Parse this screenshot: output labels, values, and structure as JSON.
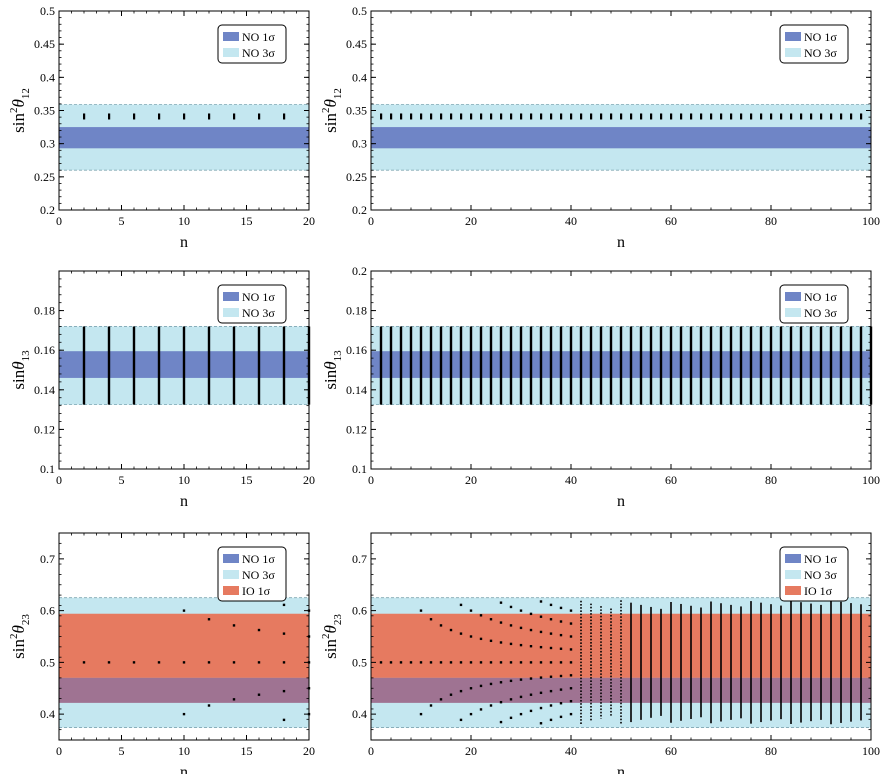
{
  "colors": {
    "no_1sigma": "#6f85c6",
    "no_3sigma": "#c4e7f0",
    "io_1sigma": "#e67a60",
    "overlap": "#9f7392",
    "points": "#000000"
  },
  "chart_data": [
    {
      "type": "scatter",
      "xlabel": "n",
      "ylabel_main": "sin",
      "ylabel_sup": "2",
      "ylabel_theta": "θ",
      "ylabel_sub": "12",
      "xlim": [
        0,
        20
      ],
      "ylim": [
        0.2,
        0.5
      ],
      "xticks": [
        0,
        5,
        10,
        15,
        20
      ],
      "yticks": [
        0.2,
        0.25,
        0.3,
        0.35,
        0.4,
        0.45,
        0.5
      ],
      "ytick_labels": [
        "0.2",
        "0.25",
        "0.3",
        "0.35",
        "0.4",
        "0.45",
        "0.5"
      ],
      "bands": [
        {
          "name": "NO 3σ",
          "range": [
            0.26,
            0.359
          ],
          "color": "no_3sigma"
        },
        {
          "name": "NO 1σ",
          "range": [
            0.293,
            0.325
          ],
          "color": "no_1sigma"
        }
      ],
      "legend": [
        {
          "label": "NO 1σ",
          "color": "no_1sigma"
        },
        {
          "label": "NO 3σ",
          "color": "no_3sigma"
        }
      ],
      "legend_position": "top-right",
      "series_mode": "marks",
      "x": [
        2,
        4,
        6,
        8,
        10,
        12,
        14,
        16,
        18
      ],
      "y": [
        0.341,
        0.341,
        0.341,
        0.341,
        0.341,
        0.341,
        0.341,
        0.341,
        0.341
      ]
    },
    {
      "type": "scatter",
      "xlabel": "n",
      "ylabel_main": "sin",
      "ylabel_sup": "2",
      "ylabel_theta": "θ",
      "ylabel_sub": "12",
      "xlim": [
        0,
        100
      ],
      "ylim": [
        0.2,
        0.5
      ],
      "xticks": [
        0,
        20,
        40,
        60,
        80,
        100
      ],
      "yticks": [
        0.2,
        0.25,
        0.3,
        0.35,
        0.4,
        0.45,
        0.5
      ],
      "ytick_labels": [
        "0.2",
        "0.25",
        "0.3",
        "0.35",
        "0.4",
        "0.45",
        "0.5"
      ],
      "bands": [
        {
          "name": "NO 3σ",
          "range": [
            0.26,
            0.359
          ],
          "color": "no_3sigma"
        },
        {
          "name": "NO 1σ",
          "range": [
            0.293,
            0.325
          ],
          "color": "no_1sigma"
        }
      ],
      "legend": [
        {
          "label": "NO 1σ",
          "color": "no_1sigma"
        },
        {
          "label": "NO 3σ",
          "color": "no_3sigma"
        }
      ],
      "legend_position": "top-right",
      "series_mode": "marks",
      "x_range_even": [
        2,
        98
      ],
      "y_value": 0.341
    },
    {
      "type": "scatter",
      "xlabel": "n",
      "ylabel_main": "sin",
      "ylabel_sup": "",
      "ylabel_theta": "θ",
      "ylabel_sub": "13",
      "xlim": [
        0,
        20
      ],
      "ylim": [
        0.1,
        0.2
      ],
      "xticks": [
        0,
        5,
        10,
        15,
        20
      ],
      "yticks": [
        0.1,
        0.12,
        0.14,
        0.16,
        0.18
      ],
      "ytick_labels": [
        "0.1",
        "0.12",
        "0.14",
        "0.16",
        "0.18"
      ],
      "bands": [
        {
          "name": "NO 3σ",
          "range": [
            0.1325,
            0.172
          ],
          "color": "no_3sigma"
        },
        {
          "name": "NO 1σ",
          "range": [
            0.146,
            0.1595
          ],
          "color": "no_1sigma"
        }
      ],
      "legend": [
        {
          "label": "NO 1σ",
          "color": "no_1sigma"
        },
        {
          "label": "NO 3σ",
          "color": "no_3sigma"
        }
      ],
      "legend_position": "top-right",
      "series_mode": "vertical-segments",
      "x_range_even": [
        2,
        20
      ],
      "y_segment": [
        0.1325,
        0.172
      ]
    },
    {
      "type": "scatter",
      "xlabel": "n",
      "ylabel_main": "sin",
      "ylabel_sup": "",
      "ylabel_theta": "θ",
      "ylabel_sub": "13",
      "xlim": [
        0,
        100
      ],
      "ylim": [
        0.1,
        0.2
      ],
      "xticks": [
        0,
        20,
        40,
        60,
        80,
        100
      ],
      "yticks": [
        0.1,
        0.12,
        0.14,
        0.16,
        0.18,
        0.2
      ],
      "ytick_labels": [
        "0.1",
        "0.12",
        "0.14",
        "0.16",
        "0.18",
        "0.2"
      ],
      "bands": [
        {
          "name": "NO 3σ",
          "range": [
            0.1325,
            0.172
          ],
          "color": "no_3sigma"
        },
        {
          "name": "NO 1σ",
          "range": [
            0.146,
            0.1595
          ],
          "color": "no_1sigma"
        }
      ],
      "legend": [
        {
          "label": "NO 1σ",
          "color": "no_1sigma"
        },
        {
          "label": "NO 3σ",
          "color": "no_3sigma"
        }
      ],
      "legend_position": "top-right",
      "series_mode": "vertical-segments",
      "x_range_even": [
        2,
        100
      ],
      "y_segment": [
        0.1325,
        0.172
      ]
    },
    {
      "type": "scatter",
      "xlabel": "n",
      "ylabel_main": "sin",
      "ylabel_sup": "2",
      "ylabel_theta": "θ",
      "ylabel_sub": "23",
      "xlim": [
        0,
        20
      ],
      "ylim": [
        0.35,
        0.75
      ],
      "xticks": [
        0,
        5,
        10,
        15,
        20
      ],
      "yticks": [
        0.4,
        0.5,
        0.6,
        0.7
      ],
      "ytick_labels": [
        "0.4",
        "0.5",
        "0.6",
        "0.7"
      ],
      "bands": [
        {
          "name": "NO 3σ",
          "range": [
            0.374,
            0.625
          ],
          "color": "no_3sigma"
        },
        {
          "name": "IO 1σ",
          "range": [
            0.47,
            0.594
          ],
          "color": "io_1sigma"
        },
        {
          "name": "IO 1σ",
          "range": [
            0.422,
            0.47
          ],
          "color": "overlap"
        }
      ],
      "legend": [
        {
          "label": "NO 1σ",
          "color": "no_1sigma"
        },
        {
          "label": "NO 3σ",
          "color": "no_3sigma"
        },
        {
          "label": "IO 1σ",
          "color": "io_1sigma"
        }
      ],
      "legend_position": "top-right",
      "series_mode": "points-kplus",
      "x_range_even": [
        2,
        20
      ]
    },
    {
      "type": "scatter",
      "xlabel": "n",
      "ylabel_main": "sin",
      "ylabel_sup": "2",
      "ylabel_theta": "θ",
      "ylabel_sub": "23",
      "xlim": [
        0,
        100
      ],
      "ylim": [
        0.35,
        0.75
      ],
      "xticks": [
        0,
        20,
        40,
        60,
        80,
        100
      ],
      "yticks": [
        0.4,
        0.5,
        0.6,
        0.7
      ],
      "ytick_labels": [
        "0.4",
        "0.5",
        "0.6",
        "0.7"
      ],
      "bands": [
        {
          "name": "NO 3σ",
          "range": [
            0.374,
            0.625
          ],
          "color": "no_3sigma"
        },
        {
          "name": "IO 1σ",
          "range": [
            0.47,
            0.594
          ],
          "color": "io_1sigma"
        },
        {
          "name": "IO 1σ",
          "range": [
            0.422,
            0.47
          ],
          "color": "overlap"
        }
      ],
      "legend": [
        {
          "label": "NO 1σ",
          "color": "no_1sigma"
        },
        {
          "label": "NO 3σ",
          "color": "no_3sigma"
        },
        {
          "label": "IO 1σ",
          "color": "io_1sigma"
        }
      ],
      "legend_position": "top-right",
      "series_mode": "points-kplus",
      "x_range_even": [
        2,
        98
      ]
    }
  ]
}
